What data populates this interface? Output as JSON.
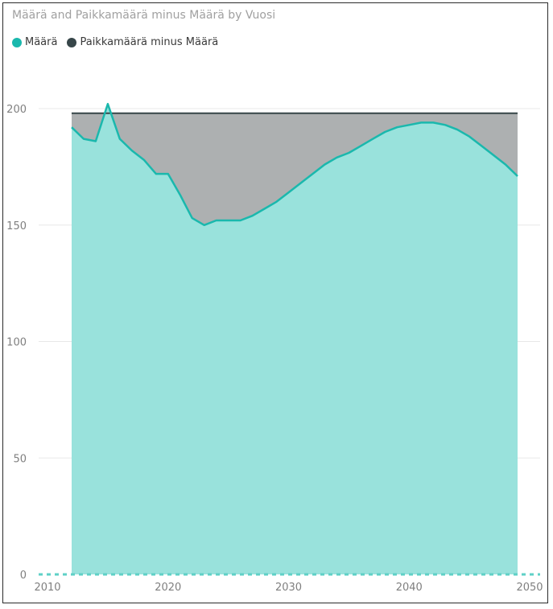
{
  "chart_data": {
    "type": "area",
    "title": "Määrä and Paikkamäärä minus Määrä by Vuosi",
    "xlabel": "",
    "ylabel": "",
    "xlim": [
      2010,
      2050
    ],
    "ylim": [
      0,
      200
    ],
    "x_ticks": [
      2010,
      2020,
      2030,
      2040,
      2050
    ],
    "y_ticks": [
      0,
      50,
      100,
      150,
      200
    ],
    "grid": true,
    "legend": "top-left",
    "series": [
      {
        "name": "Määrä",
        "color": "#1ab8ad",
        "fill": "#99e2dc",
        "x": [
          2012,
          2013,
          2014,
          2015,
          2016,
          2017,
          2018,
          2019,
          2020,
          2021,
          2022,
          2023,
          2024,
          2025,
          2026,
          2027,
          2028,
          2029,
          2030,
          2031,
          2032,
          2033,
          2034,
          2035,
          2036,
          2037,
          2038,
          2039,
          2040,
          2041,
          2042,
          2043,
          2044,
          2045,
          2046,
          2047,
          2048,
          2049
        ],
        "values": [
          192,
          187,
          186,
          202,
          187,
          182,
          178,
          172,
          172,
          163,
          153,
          150,
          152,
          152,
          152,
          154,
          157,
          160,
          164,
          168,
          172,
          176,
          179,
          181,
          184,
          187,
          190,
          192,
          193,
          194,
          194,
          193,
          191,
          188,
          184,
          180,
          176,
          171
        ]
      },
      {
        "name": "Paikkamäärä minus Määrä",
        "color": "#374649",
        "fill": "#adb0b1",
        "x": [
          2012,
          2013,
          2014,
          2015,
          2016,
          2017,
          2018,
          2019,
          2020,
          2021,
          2022,
          2023,
          2024,
          2025,
          2026,
          2027,
          2028,
          2029,
          2030,
          2031,
          2032,
          2033,
          2034,
          2035,
          2036,
          2037,
          2038,
          2039,
          2040,
          2041,
          2042,
          2043,
          2044,
          2045,
          2046,
          2047,
          2048,
          2049
        ],
        "total": 198
      }
    ]
  }
}
